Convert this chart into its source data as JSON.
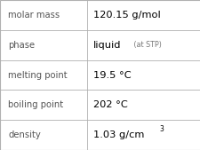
{
  "rows": [
    {
      "label": "molar mass",
      "value": "120.15 g/mol",
      "type": "plain"
    },
    {
      "label": "phase",
      "value": "liquid",
      "annotation": " (at STP)",
      "type": "annotated"
    },
    {
      "label": "melting point",
      "value": "19.5 °C",
      "type": "plain"
    },
    {
      "label": "boiling point",
      "value": "202 °C",
      "type": "plain"
    },
    {
      "label": "density",
      "value": "1.03 g/cm",
      "superscript": "3",
      "type": "superscript"
    }
  ],
  "col_split": 0.435,
  "background_color": "#ffffff",
  "border_color": "#b0b0b0",
  "label_color": "#555555",
  "value_color": "#000000",
  "annotation_color": "#777777",
  "label_fontsize": 7.2,
  "value_fontsize": 8.2,
  "annotation_fontsize": 5.8,
  "superscript_fontsize": 5.5
}
